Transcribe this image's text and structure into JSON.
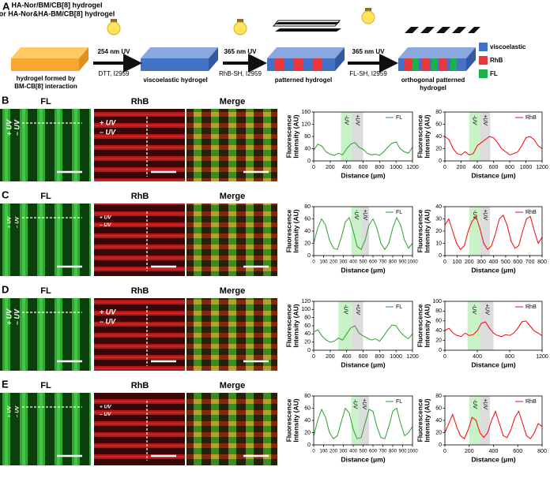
{
  "panel_a": {
    "letter": "A",
    "title_lines": [
      "HA-Nor/BM/CB[8] hydrogel",
      "or HA-Nor&HA-BM/CB[8] hydrogel"
    ],
    "steps": [
      {
        "uv": "254 nm UV",
        "reagents": "DTT, I2959"
      },
      {
        "uv": "365 nm UV",
        "reagents": "RhB-SH, I2959"
      },
      {
        "uv": "365 nm UV",
        "reagents": "FL-SH, I2959"
      }
    ],
    "captions": [
      [
        "hydrogel formed by",
        "BM-CB[8] interaction"
      ],
      [
        "viscoelastic hydrogel"
      ],
      [
        "patterned hydrogel"
      ],
      [
        "orthogonal patterned",
        "hydrogel"
      ]
    ],
    "legend": [
      "viscoelastic",
      "RhB",
      "FL"
    ]
  },
  "rows": [
    {
      "letter": "B",
      "images": [
        "FL",
        "RhB",
        "Merge"
      ],
      "fl_uv": [
        "+ UV",
        "– UV"
      ],
      "rhb_uv": [
        "+ UV",
        "– UV"
      ]
    },
    {
      "letter": "C",
      "images": [
        "FL",
        "RhB",
        "Merge"
      ],
      "fl_uv": [
        "+ UV",
        "– UV"
      ],
      "rhb_uv": [
        "+ UV",
        "– UV"
      ]
    },
    {
      "letter": "D",
      "images": [
        "FL",
        "RhB",
        "Merge"
      ],
      "fl_uv": [
        "+ UV",
        "– UV"
      ],
      "rhb_uv": [
        "+ UV",
        "– UV"
      ]
    },
    {
      "letter": "E",
      "images": [
        "FL",
        "RhB",
        "Merge"
      ],
      "fl_uv": [
        "+ UV",
        "– UV"
      ],
      "rhb_uv": [
        "+ UV",
        "– UV"
      ]
    }
  ],
  "chart_data": [
    {
      "type": "line",
      "x": [
        0,
        50,
        100,
        150,
        200,
        250,
        300,
        350,
        400,
        450,
        500,
        550,
        600,
        650,
        700,
        750,
        800,
        850,
        900,
        950,
        1000,
        1050,
        1100,
        1150,
        1200
      ],
      "series": [
        {
          "name": "FL",
          "color": "#2ca02c",
          "values": [
            35,
            55,
            48,
            30,
            22,
            18,
            25,
            20,
            40,
            55,
            60,
            45,
            38,
            25,
            20,
            22,
            18,
            30,
            45,
            58,
            62,
            40,
            30,
            25,
            45
          ]
        }
      ],
      "xlim": [
        0,
        1200
      ],
      "xticks": [
        0,
        200,
        400,
        600,
        800,
        1000,
        1200
      ],
      "ylim": [
        0,
        160
      ],
      "yticks": [
        0,
        40,
        80,
        120,
        160
      ],
      "xlabel": "Distance (μm)",
      "ylabel": [
        "Fluorescence",
        "Intensity (AU)"
      ],
      "legend": "upper right",
      "bands": [
        {
          "label": "-UV",
          "range": [
            330,
            460
          ],
          "color": "#c9f2c9"
        },
        {
          "label": "+UV",
          "range": [
            460,
            600
          ],
          "color": "#dcdcdc"
        }
      ]
    },
    {
      "type": "line",
      "x": [
        0,
        50,
        100,
        150,
        200,
        250,
        300,
        350,
        400,
        450,
        500,
        550,
        600,
        650,
        700,
        750,
        800,
        850,
        900,
        950,
        1000,
        1050,
        1100,
        1150,
        1200
      ],
      "series": [
        {
          "name": "RhB",
          "color": "#ff0000",
          "values": [
            40,
            35,
            20,
            12,
            10,
            15,
            10,
            12,
            25,
            30,
            35,
            40,
            38,
            30,
            20,
            15,
            10,
            12,
            15,
            25,
            38,
            40,
            35,
            25,
            20
          ]
        }
      ],
      "xlim": [
        0,
        1200
      ],
      "xticks": [
        0,
        200,
        400,
        600,
        800,
        1000,
        1200
      ],
      "ylim": [
        0,
        80
      ],
      "yticks": [
        0,
        20,
        40,
        60,
        80
      ],
      "xlabel": "Distance (μm)",
      "ylabel": [
        "Fluorescence",
        "Intensity (AU)"
      ],
      "legend": "upper right",
      "bands": [
        {
          "label": "-UV",
          "range": [
            300,
            430
          ],
          "color": "#c9f2c9"
        },
        {
          "label": "+UV",
          "range": [
            430,
            560
          ],
          "color": "#dcdcdc"
        }
      ]
    },
    {
      "type": "line",
      "x": [
        0,
        40,
        80,
        120,
        160,
        200,
        240,
        280,
        320,
        360,
        400,
        440,
        480,
        520,
        560,
        600,
        640,
        680,
        720,
        760,
        800,
        840,
        880,
        920,
        960,
        1000
      ],
      "series": [
        {
          "name": "FL",
          "color": "#2ca02c",
          "values": [
            20,
            45,
            60,
            50,
            25,
            12,
            10,
            30,
            55,
            62,
            40,
            15,
            10,
            25,
            50,
            60,
            45,
            20,
            10,
            20,
            45,
            62,
            50,
            25,
            12,
            20
          ]
        }
      ],
      "xlim": [
        0,
        1000
      ],
      "xticks": [
        0,
        100,
        200,
        300,
        400,
        500,
        600,
        700,
        800,
        900,
        1000
      ],
      "ylim": [
        0,
        80
      ],
      "yticks": [
        0,
        20,
        40,
        60,
        80
      ],
      "xlabel": "Distance (μm)",
      "ylabel": [
        "Fluorescence",
        "Intensity (AU)"
      ],
      "legend": "upper right",
      "bands": [
        {
          "label": "-UV",
          "range": [
            380,
            480
          ],
          "color": "#c9f2c9"
        },
        {
          "label": "+UV",
          "range": [
            480,
            560
          ],
          "color": "#dcdcdc"
        }
      ]
    },
    {
      "type": "line",
      "x": [
        0,
        32,
        64,
        96,
        128,
        160,
        192,
        224,
        256,
        288,
        320,
        352,
        384,
        416,
        448,
        480,
        512,
        544,
        576,
        608,
        640,
        672,
        704,
        736,
        768,
        800
      ],
      "series": [
        {
          "name": "RhB",
          "color": "#ff0000",
          "values": [
            25,
            30,
            20,
            10,
            5,
            8,
            20,
            28,
            32,
            22,
            10,
            5,
            8,
            18,
            30,
            33,
            25,
            12,
            6,
            8,
            20,
            30,
            32,
            20,
            10,
            15
          ]
        }
      ],
      "xlim": [
        0,
        800
      ],
      "xticks": [
        0,
        100,
        200,
        300,
        400,
        500,
        600,
        700,
        800
      ],
      "ylim": [
        0,
        40
      ],
      "yticks": [
        0,
        10,
        20,
        30,
        40
      ],
      "xlabel": "Distance (μm)",
      "ylabel": [
        "Fluorescence",
        "Intensity (AU)"
      ],
      "legend": "upper right",
      "bands": [
        {
          "label": "-UV",
          "range": [
            200,
            290
          ],
          "color": "#c9f2c9"
        },
        {
          "label": "+UV",
          "range": [
            290,
            370
          ],
          "color": "#dcdcdc"
        }
      ]
    },
    {
      "type": "line",
      "x": [
        0,
        50,
        100,
        150,
        200,
        250,
        300,
        350,
        400,
        450,
        500,
        550,
        600,
        650,
        700,
        750,
        800,
        850,
        900,
        950,
        1000,
        1050,
        1100,
        1150,
        1200
      ],
      "series": [
        {
          "name": "FL",
          "color": "#2ca02c",
          "values": [
            45,
            50,
            35,
            25,
            20,
            22,
            30,
            25,
            40,
            55,
            60,
            42,
            35,
            30,
            25,
            28,
            22,
            35,
            50,
            62,
            60,
            45,
            35,
            28,
            40
          ]
        }
      ],
      "xlim": [
        0,
        1200
      ],
      "xticks": [
        0,
        200,
        400,
        600,
        800,
        1000,
        1200
      ],
      "ylim": [
        0,
        120
      ],
      "yticks": [
        0,
        20,
        40,
        60,
        80,
        100,
        120
      ],
      "xlabel": "Distance (μm)",
      "ylabel": [
        "Fluorescence",
        "Intensity (AU)"
      ],
      "legend": "upper right",
      "bands": [
        {
          "label": "-UV",
          "range": [
            300,
            470
          ],
          "color": "#c9f2c9"
        },
        {
          "label": "+UV",
          "range": [
            470,
            600
          ],
          "color": "#dcdcdc"
        }
      ]
    },
    {
      "type": "line",
      "x": [
        0,
        50,
        100,
        150,
        200,
        250,
        300,
        350,
        400,
        450,
        500,
        550,
        600,
        650,
        700,
        750,
        800,
        850,
        900,
        950,
        1000,
        1050,
        1100,
        1150,
        1200
      ],
      "series": [
        {
          "name": "RhB",
          "color": "#ff0000",
          "values": [
            40,
            45,
            35,
            30,
            28,
            35,
            30,
            32,
            40,
            55,
            58,
            45,
            35,
            30,
            28,
            32,
            30,
            35,
            45,
            58,
            60,
            50,
            40,
            35,
            30
          ]
        }
      ],
      "xlim": [
        0,
        1200
      ],
      "xticks": [
        0,
        400,
        800,
        1200
      ],
      "ylim": [
        0,
        100
      ],
      "yticks": [
        0,
        20,
        40,
        60,
        80,
        100
      ],
      "xlabel": "Distance (μm)",
      "ylabel": [
        "Fluorescence",
        "Intensity (AU)"
      ],
      "legend": "upper right",
      "bands": [
        {
          "label": "-UV",
          "range": [
            280,
            440
          ],
          "color": "#c9f2c9"
        },
        {
          "label": "+UV",
          "range": [
            440,
            600
          ],
          "color": "#dcdcdc"
        }
      ]
    },
    {
      "type": "line",
      "x": [
        0,
        40,
        80,
        120,
        160,
        200,
        240,
        280,
        320,
        360,
        400,
        440,
        480,
        520,
        560,
        600,
        640,
        680,
        720,
        760,
        800,
        840,
        880,
        920,
        960,
        1000
      ],
      "series": [
        {
          "name": "FL",
          "color": "#2ca02c",
          "values": [
            15,
            40,
            58,
            45,
            20,
            10,
            15,
            38,
            60,
            52,
            25,
            10,
            12,
            35,
            58,
            55,
            30,
            12,
            10,
            30,
            55,
            60,
            35,
            15,
            20,
            30
          ]
        }
      ],
      "xlim": [
        0,
        1000
      ],
      "xticks": [
        0,
        100,
        200,
        300,
        400,
        500,
        600,
        700,
        800,
        900,
        1000
      ],
      "ylim": [
        0,
        80
      ],
      "yticks": [
        0,
        20,
        40,
        60,
        80
      ],
      "xlabel": "Distance (μm)",
      "ylabel": [
        "Fluorescence",
        "Intensity (AU)"
      ],
      "legend": "upper right",
      "bands": [
        {
          "label": "-UV",
          "range": [
            380,
            460
          ],
          "color": "#c9f2c9"
        },
        {
          "label": "+UV",
          "range": [
            460,
            560
          ],
          "color": "#dcdcdc"
        }
      ]
    },
    {
      "type": "line",
      "x": [
        0,
        32,
        64,
        96,
        128,
        160,
        192,
        224,
        256,
        288,
        320,
        352,
        384,
        416,
        448,
        480,
        512,
        544,
        576,
        608,
        640,
        672,
        704,
        736,
        768,
        800
      ],
      "series": [
        {
          "name": "RhB",
          "color": "#ff0000",
          "values": [
            20,
            35,
            50,
            30,
            15,
            10,
            25,
            45,
            40,
            20,
            12,
            20,
            40,
            55,
            35,
            15,
            12,
            25,
            45,
            55,
            35,
            15,
            10,
            20,
            35,
            30
          ]
        }
      ],
      "xlim": [
        0,
        800
      ],
      "xticks": [
        0,
        200,
        400,
        600,
        800
      ],
      "ylim": [
        0,
        80
      ],
      "yticks": [
        0,
        20,
        40,
        60,
        80
      ],
      "xlabel": "Distance (μm)",
      "ylabel": [
        "Fluorescence",
        "Intensity (AU)"
      ],
      "legend": "upper right",
      "bands": [
        {
          "label": "-UV",
          "range": [
            200,
            290
          ],
          "color": "#c9f2c9"
        },
        {
          "label": "+UV",
          "range": [
            290,
            370
          ],
          "color": "#dcdcdc"
        }
      ]
    }
  ]
}
